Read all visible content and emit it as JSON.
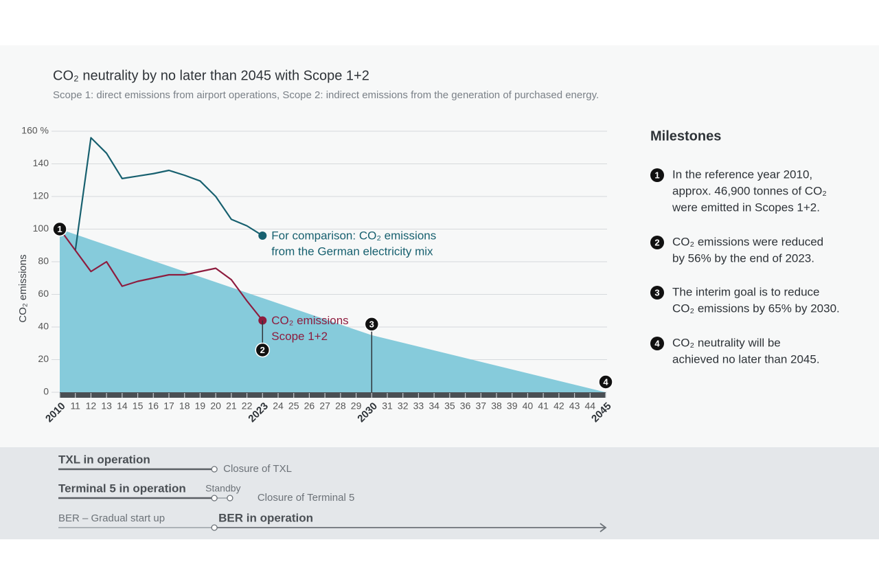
{
  "chart_data": {
    "type": "line",
    "title": "CO₂ neutrality by no later than 2045 with Scope 1+2",
    "subtitle": "Scope 1: direct emissions from airport operations, Scope 2: indirect emissions from the generation of purchased energy.",
    "y_label": "CO₂ emissions",
    "xlim": [
      2010,
      2045
    ],
    "ylim": [
      0,
      160
    ],
    "yticks": [
      0,
      20,
      40,
      60,
      80,
      100,
      120,
      140,
      {
        "value": 160,
        "label": "160 %"
      }
    ],
    "xticks": [
      2010,
      {
        "value": 2011,
        "label": "11"
      },
      {
        "value": 2012,
        "label": "12"
      },
      {
        "value": 2013,
        "label": "13"
      },
      {
        "value": 2014,
        "label": "14"
      },
      {
        "value": 2015,
        "label": "15"
      },
      {
        "value": 2016,
        "label": "16"
      },
      {
        "value": 2017,
        "label": "17"
      },
      {
        "value": 2018,
        "label": "18"
      },
      {
        "value": 2019,
        "label": "19"
      },
      {
        "value": 2020,
        "label": "20"
      },
      {
        "value": 2021,
        "label": "21"
      },
      {
        "value": 2022,
        "label": "22"
      },
      2023,
      {
        "value": 2024,
        "label": "24"
      },
      {
        "value": 2025,
        "label": "25"
      },
      {
        "value": 2026,
        "label": "26"
      },
      {
        "value": 2027,
        "label": "27"
      },
      {
        "value": 2028,
        "label": "28"
      },
      {
        "value": 2029,
        "label": "29"
      },
      2030,
      {
        "value": 2031,
        "label": "31"
      },
      {
        "value": 2032,
        "label": "32"
      },
      {
        "value": 2033,
        "label": "33"
      },
      {
        "value": 2034,
        "label": "34"
      },
      {
        "value": 2035,
        "label": "35"
      },
      {
        "value": 2036,
        "label": "36"
      },
      {
        "value": 2037,
        "label": "37"
      },
      {
        "value": 2038,
        "label": "38"
      },
      {
        "value": 2039,
        "label": "39"
      },
      {
        "value": 2040,
        "label": "40"
      },
      {
        "value": 2041,
        "label": "41"
      },
      {
        "value": 2042,
        "label": "42"
      },
      {
        "value": 2043,
        "label": "43"
      },
      {
        "value": 2044,
        "label": "44"
      },
      2045
    ],
    "grid": true,
    "series": [
      {
        "kind": "area",
        "color": "#86cbdb",
        "x": [
          2010,
          2030,
          2045
        ],
        "values": [
          100,
          35,
          0
        ]
      },
      {
        "kind": "line",
        "color": "#17606f",
        "label": [
          "For comparison: CO₂ emissions",
          "from the German electricity mix"
        ],
        "x": [
          2011,
          2012,
          2013,
          2014,
          2015,
          2016,
          2017,
          2018,
          2019,
          2020,
          2021,
          2022,
          2023
        ],
        "values": [
          87,
          156,
          146.5,
          131,
          132.5,
          134,
          136,
          133,
          129.5,
          120,
          106,
          102,
          96
        ]
      },
      {
        "kind": "line",
        "color": "#8d1c3e",
        "label": [
          "CO₂ emissions",
          "Scope 1+2"
        ],
        "x": [
          2010,
          2011,
          2012,
          2013,
          2014,
          2015,
          2016,
          2017,
          2018,
          2019,
          2020,
          2021,
          2022,
          2023
        ],
        "values": [
          100,
          87,
          74,
          80,
          65,
          68,
          70,
          72,
          72,
          74,
          76,
          69,
          56,
          44
        ]
      }
    ],
    "milestone_markers": [
      {
        "label": "1",
        "x": 2010
      },
      {
        "label": "2",
        "x": 2023
      },
      {
        "label": "3",
        "x": 2030
      },
      {
        "label": "4",
        "x": 2045
      }
    ],
    "milestones_title": "Milestones",
    "milestones": [
      {
        "label": "1",
        "lines": [
          "In the reference year 2010,",
          "approx. 46,900 tonnes of CO₂",
          "were emitted in Scopes 1+2."
        ]
      },
      {
        "label": "2",
        "lines": [
          "CO₂ emissions were reduced",
          "by 56% by the end of 2023."
        ]
      },
      {
        "label": "3",
        "lines": [
          "The interim goal is to reduce",
          "CO₂ emissions by 65% by 2030."
        ]
      },
      {
        "label": "4",
        "lines": [
          "CO₂ neutrality will be",
          "achieved no later than 2045."
        ]
      }
    ],
    "timeline": [
      {
        "label": "TXL in operation",
        "start": 2010,
        "end": 2020,
        "end_label": "Closure of TXL"
      },
      {
        "label": "Terminal 5 in operation",
        "start": 2010,
        "end": 2020,
        "standby_label": "Standby",
        "standby_end": 2021,
        "end_label": "Closure of Terminal 5"
      },
      {
        "label": "BER – Gradual start up",
        "start": 2010,
        "end": 2020,
        "next_label": "BER in operation",
        "next_end": 2045
      }
    ]
  }
}
